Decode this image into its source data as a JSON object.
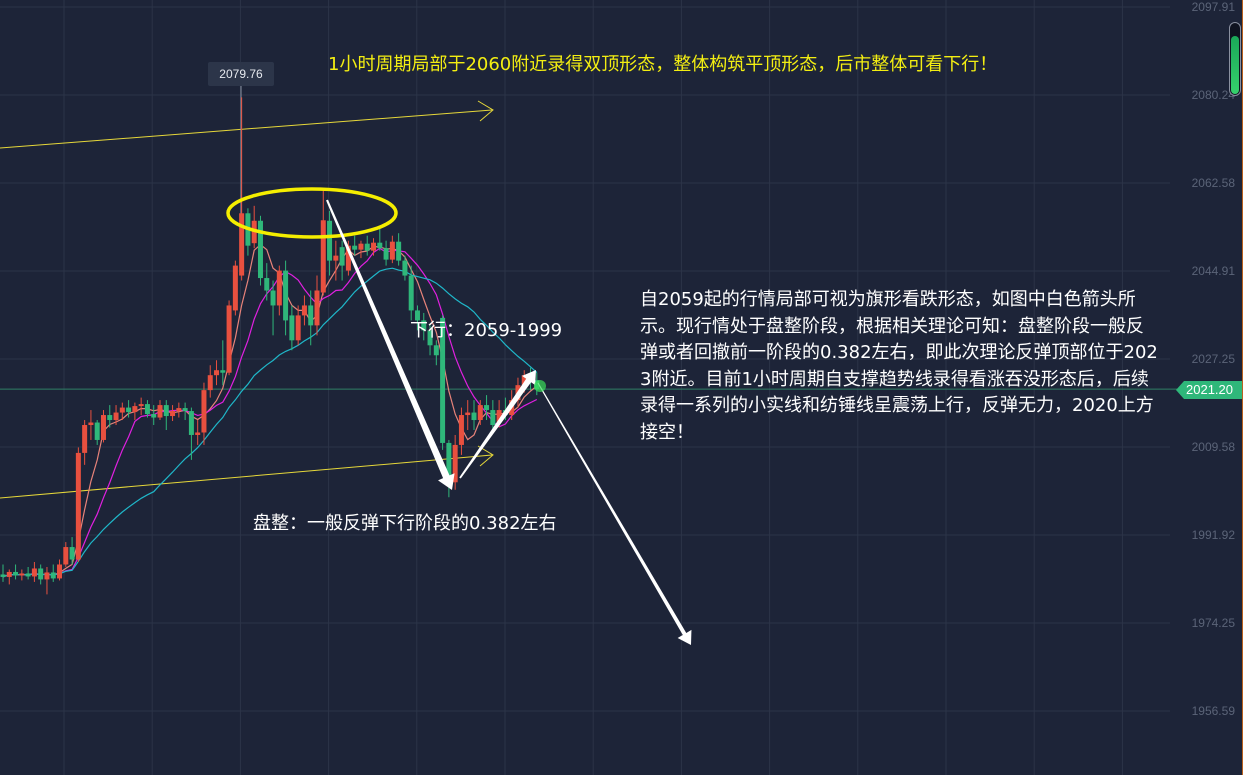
{
  "chart_data": {
    "type": "candlestick",
    "y_axis": {
      "ticks": [
        "2097.91",
        "2080.24",
        "2062.58",
        "2044.91",
        "2027.25",
        "2009.58",
        "1991.92",
        "1974.25",
        "1956.59"
      ],
      "range": [
        1956.59,
        2097.91
      ],
      "position": "right"
    },
    "grid": true,
    "up_color": "#e8503f",
    "down_color": "#2fb77a",
    "ma_colors": [
      "#e8837a",
      "#e020e0",
      "#1fb7c9"
    ],
    "candles": [
      [
        1984,
        1986,
        1982.5,
        1983.5
      ],
      [
        1983.5,
        1985,
        1982,
        1984.5
      ],
      [
        1984.5,
        1986,
        1983,
        1983.8
      ],
      [
        1983.8,
        1985,
        1982.8,
        1984.2
      ],
      [
        1984.2,
        1985.5,
        1983,
        1983.6
      ],
      [
        1983.6,
        1986.5,
        1982.5,
        1985.2
      ],
      [
        1985.2,
        1986,
        1982,
        1983
      ],
      [
        1983,
        1985.5,
        1980,
        1984.4
      ],
      [
        1984.4,
        1986,
        1982.5,
        1983.2
      ],
      [
        1983.2,
        1987,
        1982.8,
        1986
      ],
      [
        1986,
        1990.5,
        1985.5,
        1989.5
      ],
      [
        1989.5,
        1991.5,
        1986,
        1987
      ],
      [
        1987,
        2009.5,
        1986.5,
        2008.4
      ],
      [
        2008.4,
        2015,
        2006,
        2014
      ],
      [
        2014,
        2017,
        2011,
        2014.5
      ],
      [
        2014.5,
        2015,
        2010,
        2011
      ],
      [
        2011,
        2017,
        2010.5,
        2016
      ],
      [
        2016,
        2018,
        2013.5,
        2015
      ],
      [
        2015,
        2018,
        2014,
        2016.5
      ],
      [
        2016.5,
        2018.5,
        2015,
        2017.5
      ],
      [
        2017.5,
        2019,
        2015.5,
        2016.6
      ],
      [
        2016.6,
        2018.5,
        2015,
        2017.8
      ],
      [
        2017.8,
        2019.5,
        2016,
        2018.2
      ],
      [
        2018.2,
        2019,
        2015.5,
        2016.2
      ],
      [
        2016.2,
        2018,
        2014,
        2015.5
      ],
      [
        2015.5,
        2019,
        2015,
        2018
      ],
      [
        2018,
        2019,
        2013,
        2015.8
      ],
      [
        2015.8,
        2018,
        2014.8,
        2016.8
      ],
      [
        2016.8,
        2018.5,
        2015.5,
        2017.4
      ],
      [
        2017.4,
        2018.5,
        2015,
        2016.8
      ],
      [
        2016.8,
        2017.5,
        2007,
        2012
      ],
      [
        2012,
        2015,
        2010,
        2012.5
      ],
      [
        2012.5,
        2022.5,
        2010,
        2021
      ],
      [
        2021,
        2026,
        2019.5,
        2024
      ],
      [
        2024,
        2027,
        2022,
        2025
      ],
      [
        2025,
        2031,
        2022,
        2024.5
      ],
      [
        2024.5,
        2039,
        2024,
        2038
      ],
      [
        2037,
        2047,
        2036,
        2046
      ],
      [
        2044,
        2079.76,
        2043,
        2056.5
      ],
      [
        2056.5,
        2057.5,
        2048,
        2050
      ],
      [
        2050.5,
        2058,
        2049.5,
        2055
      ],
      [
        2055,
        2056,
        2042,
        2043.5
      ],
      [
        2043.5,
        2046.5,
        2039,
        2041
      ],
      [
        2041,
        2043,
        2032,
        2038
      ],
      [
        2038,
        2046,
        2036,
        2045
      ],
      [
        2045,
        2047,
        2032,
        2035
      ],
      [
        2036,
        2038,
        2029,
        2031
      ],
      [
        2031,
        2038,
        2030,
        2036
      ],
      [
        2036,
        2040,
        2034,
        2038
      ],
      [
        2038,
        2041,
        2030,
        2034
      ],
      [
        2034,
        2044,
        2032,
        2041
      ],
      [
        2040.6,
        2061.5,
        2040,
        2055.1
      ],
      [
        2055,
        2057,
        2044,
        2047
      ],
      [
        2047,
        2051,
        2043,
        2048
      ],
      [
        2049.7,
        2051,
        2043,
        2046
      ],
      [
        2045,
        2051,
        2044,
        2050
      ],
      [
        2050,
        2052,
        2048,
        2049.2
      ],
      [
        2049.2,
        2051,
        2047.5,
        2050.4
      ],
      [
        2050.4,
        2052,
        2048,
        2049
      ],
      [
        2049,
        2051.5,
        2048,
        2050.6
      ],
      [
        2050.6,
        2054,
        2049,
        2049.5
      ],
      [
        2049.5,
        2051,
        2046,
        2047.2
      ],
      [
        2047.2,
        2052,
        2046.5,
        2050.8
      ],
      [
        2050.8,
        2052.5,
        2046,
        2047
      ],
      [
        2047,
        2048,
        2043,
        2044
      ],
      [
        2044,
        2046,
        2035,
        2037
      ],
      [
        2037,
        2038,
        2033,
        2035
      ],
      [
        2035,
        2036.5,
        2031,
        2033
      ],
      [
        2033,
        2034,
        2028,
        2030
      ],
      [
        2030,
        2031,
        2026,
        2028
      ],
      [
        2035.5,
        2036,
        2009,
        2010.4
      ],
      [
        2010.4,
        2011,
        1999.5,
        2002.5
      ],
      [
        2002.5,
        2012,
        2001,
        2010
      ],
      [
        2010,
        2017.5,
        2008,
        2016
      ],
      [
        2016,
        2019,
        2013,
        2016.5
      ],
      [
        2016.5,
        2019,
        2013,
        2015
      ],
      [
        2015,
        2019,
        2014,
        2018
      ],
      [
        2018,
        2020,
        2015,
        2017
      ],
      [
        2017,
        2019,
        2013,
        2014
      ],
      [
        2014.5,
        2019,
        2013.5,
        2017
      ],
      [
        2017,
        2019.5,
        2015,
        2016
      ],
      [
        2016,
        2021,
        2015,
        2019
      ],
      [
        2019,
        2023.5,
        2017.5,
        2022
      ],
      [
        2022,
        2025,
        2020.5,
        2024
      ],
      [
        2024,
        2025.5,
        2021,
        2023
      ],
      [
        2023,
        2024.5,
        2020,
        2021.2
      ]
    ],
    "last_price": "2021.20",
    "tooltip_high": "2079.76"
  },
  "annotations": {
    "top_note": "1小时周期局部于2060附近录得双顶形态，整体构筑平顶形态，后市整体可看下行！",
    "down_note": "下行：2059-1999",
    "consolidation_note": "盘整：一般反弹下行阶段的0.382左右",
    "analysis": "自2059起的行情局部可视为旗形看跌形态，如图中白色箭头所示。现行情处于盘整阶段，根据相关理论可知：盘整阶段一般反弹或者回撤前一阶段的0.382左右，即此次理论反弹顶部位于2023附近。目前1小时周期自支撑趋势线录得看涨吞没形态后，后续录得一系列的小实线和纺锤线呈震荡上行，反弹无力，2020上方接空！",
    "ellipse_color": "#f5ee00",
    "trendline_color": "#e6d83a"
  }
}
